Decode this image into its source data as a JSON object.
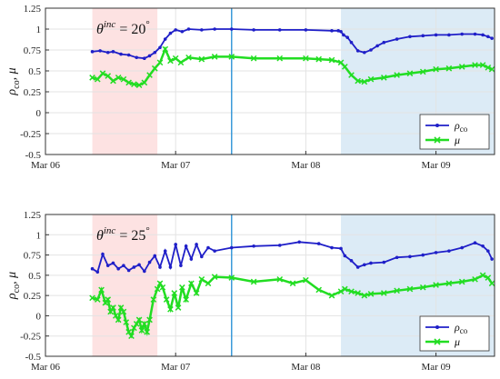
{
  "chart_data": [
    {
      "type": "line",
      "annotation": {
        "base": "θ",
        "sup": "inc",
        "value": " = 20",
        "unit": "°"
      },
      "ylabel": {
        "rho": "ρ",
        "sub": "co",
        "rest": ", μ"
      },
      "x_ticks": [
        "Mar 06",
        "Mar 07",
        "Mar 08",
        "Mar 09"
      ],
      "x_tick_days": [
        0,
        1,
        2,
        3
      ],
      "xlim": [
        0,
        3.45
      ],
      "ylim": [
        -0.5,
        1.25
      ],
      "y_ticks": [
        -0.5,
        -0.25,
        0,
        0.25,
        0.5,
        0.75,
        1,
        1.25
      ],
      "y_tick_labels": [
        "-0.5",
        "-0.25",
        "0",
        "0.25",
        "0.5",
        "0.75",
        "1",
        "1.25"
      ],
      "grid": true,
      "legend_position": "bottom-right",
      "shaded_regions": [
        {
          "x0": 0.36,
          "x1": 0.86,
          "color": "#fde2e2"
        },
        {
          "x0": 2.27,
          "x1": 3.45,
          "color": "#dcebf6"
        }
      ],
      "vertical_line": {
        "x": 1.43,
        "color": "#3a9ad9"
      },
      "series": [
        {
          "name": "ρco",
          "marker": "dot",
          "color": "#1f1fc8",
          "x": [
            0.36,
            0.42,
            0.48,
            0.52,
            0.58,
            0.64,
            0.7,
            0.76,
            0.8,
            0.84,
            0.88,
            0.92,
            0.96,
            1.0,
            1.05,
            1.1,
            1.2,
            1.3,
            1.43,
            1.6,
            1.8,
            2.0,
            2.2,
            2.25,
            2.27,
            2.29,
            2.32,
            2.35,
            2.4,
            2.45,
            2.5,
            2.55,
            2.6,
            2.7,
            2.8,
            2.9,
            3.0,
            3.1,
            3.2,
            3.3,
            3.36,
            3.4,
            3.43
          ],
          "y": [
            0.73,
            0.74,
            0.72,
            0.73,
            0.7,
            0.69,
            0.66,
            0.65,
            0.68,
            0.72,
            0.78,
            0.88,
            0.95,
            0.99,
            0.97,
            1.0,
            0.99,
            1.0,
            1.0,
            0.99,
            0.99,
            0.99,
            0.98,
            0.98,
            0.97,
            0.93,
            0.9,
            0.84,
            0.74,
            0.72,
            0.75,
            0.8,
            0.84,
            0.88,
            0.91,
            0.92,
            0.93,
            0.93,
            0.94,
            0.94,
            0.93,
            0.91,
            0.89
          ]
        },
        {
          "name": "μ",
          "marker": "x",
          "color": "#22dd22",
          "x": [
            0.36,
            0.4,
            0.44,
            0.48,
            0.52,
            0.56,
            0.6,
            0.64,
            0.68,
            0.72,
            0.76,
            0.8,
            0.84,
            0.88,
            0.92,
            0.96,
            1.0,
            1.04,
            1.1,
            1.2,
            1.3,
            1.43,
            1.6,
            1.8,
            2.0,
            2.1,
            2.2,
            2.27,
            2.3,
            2.35,
            2.4,
            2.45,
            2.5,
            2.6,
            2.7,
            2.8,
            2.9,
            3.0,
            3.1,
            3.2,
            3.3,
            3.36,
            3.4,
            3.43
          ],
          "y": [
            0.42,
            0.4,
            0.47,
            0.44,
            0.38,
            0.42,
            0.4,
            0.36,
            0.34,
            0.33,
            0.36,
            0.45,
            0.53,
            0.6,
            0.76,
            0.62,
            0.65,
            0.6,
            0.66,
            0.64,
            0.67,
            0.67,
            0.65,
            0.65,
            0.65,
            0.64,
            0.63,
            0.6,
            0.55,
            0.45,
            0.38,
            0.37,
            0.4,
            0.42,
            0.45,
            0.47,
            0.49,
            0.52,
            0.53,
            0.55,
            0.57,
            0.57,
            0.54,
            0.52
          ]
        }
      ]
    },
    {
      "type": "line",
      "annotation": {
        "base": "θ",
        "sup": "inc",
        "value": " = 25",
        "unit": "°"
      },
      "ylabel": {
        "rho": "ρ",
        "sub": "co",
        "rest": ", μ"
      },
      "x_ticks": [
        "Mar 06",
        "Mar 07",
        "Mar 08",
        "Mar 09"
      ],
      "x_tick_days": [
        0,
        1,
        2,
        3
      ],
      "xlim": [
        0,
        3.45
      ],
      "ylim": [
        -0.5,
        1.25
      ],
      "y_ticks": [
        -0.5,
        -0.25,
        0,
        0.25,
        0.5,
        0.75,
        1,
        1.25
      ],
      "y_tick_labels": [
        "-0.5",
        "-0.25",
        "0",
        "0.25",
        "0.5",
        "0.75",
        "1",
        "1.25"
      ],
      "grid": true,
      "legend_position": "bottom-right",
      "shaded_regions": [
        {
          "x0": 0.36,
          "x1": 0.86,
          "color": "#fde2e2"
        },
        {
          "x0": 2.27,
          "x1": 3.45,
          "color": "#dcebf6"
        }
      ],
      "vertical_line": {
        "x": 1.43,
        "color": "#3a9ad9"
      },
      "series": [
        {
          "name": "ρco",
          "marker": "dot",
          "color": "#1f1fc8",
          "x": [
            0.36,
            0.4,
            0.44,
            0.48,
            0.52,
            0.56,
            0.6,
            0.64,
            0.68,
            0.72,
            0.76,
            0.8,
            0.84,
            0.88,
            0.92,
            0.96,
            1.0,
            1.04,
            1.08,
            1.12,
            1.16,
            1.2,
            1.25,
            1.3,
            1.43,
            1.6,
            1.8,
            1.95,
            2.1,
            2.2,
            2.27,
            2.3,
            2.35,
            2.4,
            2.45,
            2.5,
            2.6,
            2.7,
            2.8,
            2.9,
            3.0,
            3.1,
            3.2,
            3.3,
            3.36,
            3.4,
            3.43
          ],
          "y": [
            0.58,
            0.54,
            0.76,
            0.62,
            0.65,
            0.58,
            0.62,
            0.56,
            0.6,
            0.63,
            0.55,
            0.66,
            0.74,
            0.6,
            0.8,
            0.6,
            0.88,
            0.62,
            0.86,
            0.7,
            0.88,
            0.73,
            0.84,
            0.8,
            0.84,
            0.86,
            0.87,
            0.91,
            0.89,
            0.84,
            0.83,
            0.74,
            0.68,
            0.6,
            0.63,
            0.65,
            0.66,
            0.72,
            0.73,
            0.75,
            0.78,
            0.8,
            0.84,
            0.9,
            0.86,
            0.8,
            0.7
          ]
        },
        {
          "name": "μ",
          "marker": "x",
          "color": "#22dd22",
          "x": [
            0.36,
            0.4,
            0.43,
            0.46,
            0.48,
            0.5,
            0.52,
            0.54,
            0.56,
            0.58,
            0.6,
            0.62,
            0.64,
            0.66,
            0.68,
            0.7,
            0.72,
            0.74,
            0.76,
            0.78,
            0.8,
            0.83,
            0.86,
            0.88,
            0.9,
            0.93,
            0.96,
            0.99,
            1.02,
            1.05,
            1.08,
            1.12,
            1.16,
            1.2,
            1.25,
            1.3,
            1.43,
            1.6,
            1.8,
            1.9,
            2.0,
            2.1,
            2.2,
            2.27,
            2.3,
            2.35,
            2.4,
            2.45,
            2.5,
            2.6,
            2.7,
            2.8,
            2.9,
            3.0,
            3.1,
            3.2,
            3.3,
            3.36,
            3.4,
            3.43
          ],
          "y": [
            0.22,
            0.2,
            0.32,
            0.16,
            0.2,
            0.05,
            0.1,
            0.0,
            -0.05,
            0.1,
            0.05,
            -0.08,
            -0.2,
            -0.25,
            -0.15,
            -0.1,
            -0.05,
            -0.18,
            -0.1,
            -0.2,
            -0.05,
            0.2,
            0.33,
            0.4,
            0.35,
            0.2,
            0.08,
            0.28,
            0.1,
            0.35,
            0.2,
            0.4,
            0.28,
            0.45,
            0.4,
            0.48,
            0.47,
            0.42,
            0.45,
            0.4,
            0.44,
            0.32,
            0.25,
            0.3,
            0.33,
            0.3,
            0.28,
            0.25,
            0.27,
            0.28,
            0.31,
            0.33,
            0.35,
            0.38,
            0.4,
            0.42,
            0.45,
            0.5,
            0.47,
            0.4
          ]
        }
      ]
    }
  ]
}
